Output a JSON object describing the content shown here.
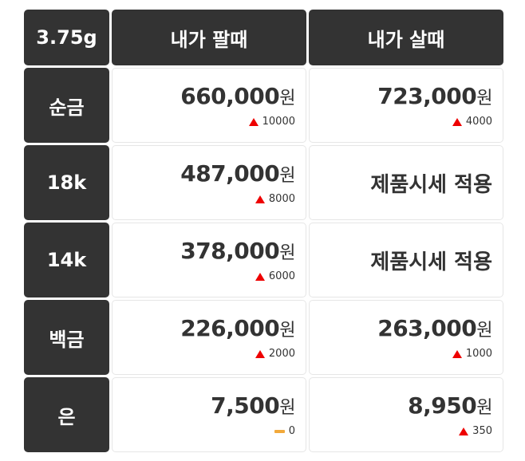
{
  "header": {
    "weight": "3.75g",
    "sell": "내가 팔때",
    "buy": "내가 살때"
  },
  "colors": {
    "header_bg": "#333333",
    "up": "#e00000",
    "flat": "#f2a93b"
  },
  "unit": "원",
  "rows": [
    {
      "label": "순금",
      "sell": {
        "price": "660,000",
        "change": "10000",
        "trend": "up"
      },
      "buy": {
        "price": "723,000",
        "change": "4000",
        "trend": "up"
      }
    },
    {
      "label": "18k",
      "sell": {
        "price": "487,000",
        "change": "8000",
        "trend": "up"
      },
      "buy": {
        "text": "제품시세 적용"
      }
    },
    {
      "label": "14k",
      "sell": {
        "price": "378,000",
        "change": "6000",
        "trend": "up"
      },
      "buy": {
        "text": "제품시세 적용"
      }
    },
    {
      "label": "백금",
      "sell": {
        "price": "226,000",
        "change": "2000",
        "trend": "up"
      },
      "buy": {
        "price": "263,000",
        "change": "1000",
        "trend": "up"
      }
    },
    {
      "label": "은",
      "sell": {
        "price": "7,500",
        "change": "0",
        "trend": "flat"
      },
      "buy": {
        "price": "8,950",
        "change": "350",
        "trend": "up"
      }
    }
  ]
}
